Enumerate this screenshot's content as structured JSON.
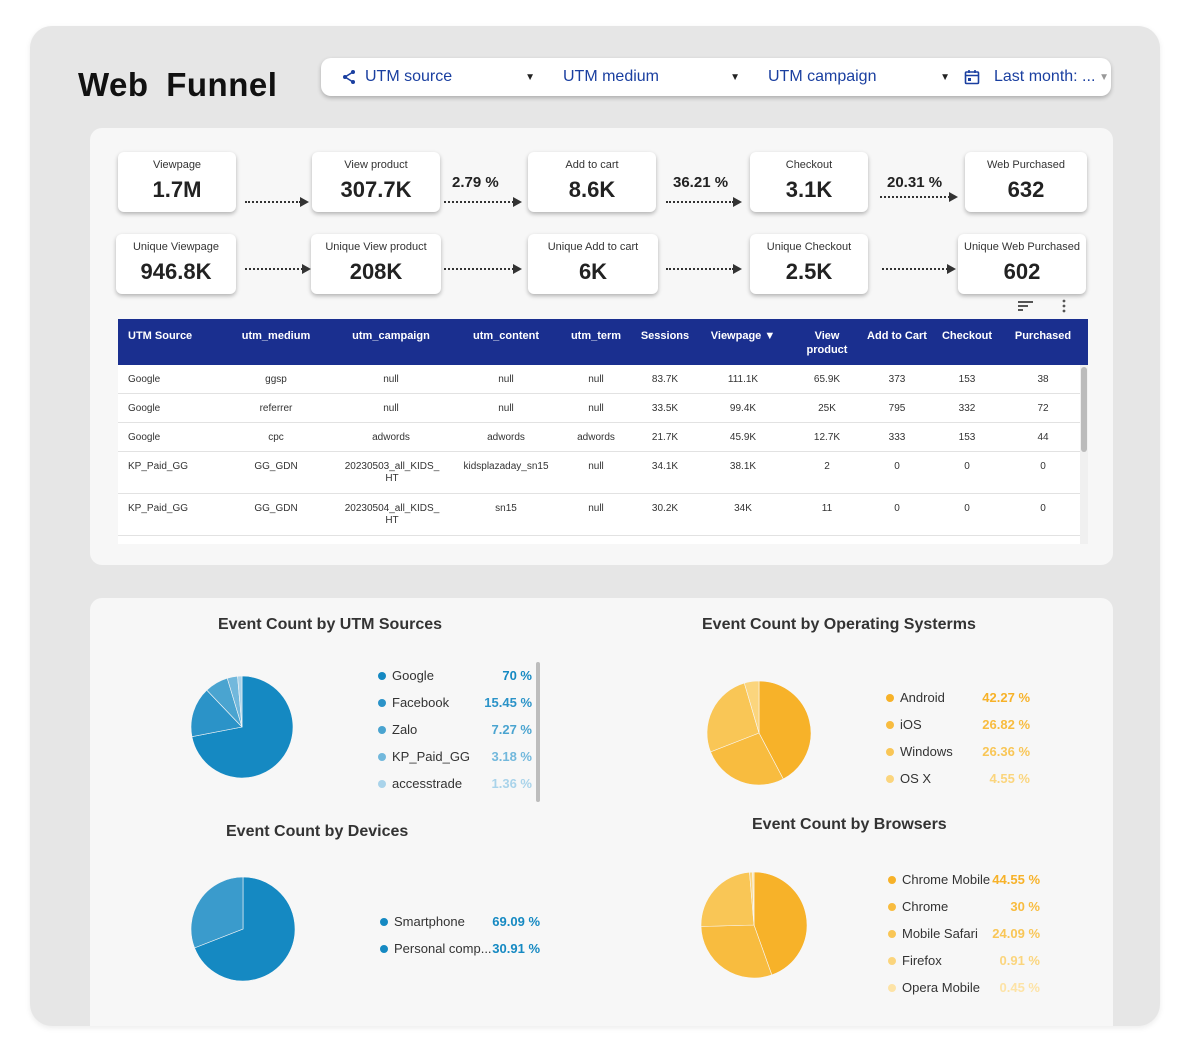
{
  "title": "Web Funnel",
  "filters": {
    "utm_source": "UTM source",
    "utm_medium": "UTM medium",
    "utm_campaign": "UTM campaign",
    "date": "Last month: ..."
  },
  "funnel": {
    "row1": [
      {
        "label": "Viewpage",
        "value": "1.7M"
      },
      {
        "label": "View product",
        "value": "307.7K"
      },
      {
        "label": "Add to cart",
        "value": "8.6K"
      },
      {
        "label": "Checkout",
        "value": "3.1K"
      },
      {
        "label": "Web Purchased",
        "value": "632"
      }
    ],
    "rates": [
      "2.79 %",
      "36.21 %",
      "20.31 %"
    ],
    "row2": [
      {
        "label": "Unique Viewpage",
        "value": "946.8K"
      },
      {
        "label": "Unique View product",
        "value": "208K"
      },
      {
        "label": "Unique Add to cart",
        "value": "6K"
      },
      {
        "label": "Unique Checkout",
        "value": "2.5K"
      },
      {
        "label": "Unique Web Purchased",
        "value": "602"
      }
    ]
  },
  "table": {
    "headers": [
      "UTM Source",
      "utm_medium",
      "utm_campaign",
      "utm_content",
      "utm_term",
      "Sessions",
      "Viewpage ▼",
      "View product",
      "Add to Cart",
      "Checkout",
      "Purchased"
    ],
    "rows": [
      [
        "Google",
        "ggsp",
        "null",
        "null",
        "null",
        "83.7K",
        "111.1K",
        "65.9K",
        "373",
        "153",
        "38"
      ],
      [
        "Google",
        "referrer",
        "null",
        "null",
        "null",
        "33.5K",
        "99.4K",
        "25K",
        "795",
        "332",
        "72"
      ],
      [
        "Google",
        "cpc",
        "adwords",
        "adwords",
        "adwords",
        "21.7K",
        "45.9K",
        "12.7K",
        "333",
        "153",
        "44"
      ],
      [
        "KP_Paid_GG",
        "GG_GDN",
        "20230503_all_KIDS_HT",
        "kidsplazaday_sn15",
        "null",
        "34.1K",
        "38.1K",
        "2",
        "0",
        "0",
        "0"
      ],
      [
        "KP_Paid_GG",
        "GG_GDN",
        "20230504_all_KIDS_HT",
        "sn15",
        "null",
        "30.2K",
        "34K",
        "11",
        "0",
        "0",
        "0"
      ]
    ]
  },
  "charts": {
    "utm_sources": {
      "title": "Event Count by UTM Sources",
      "legend": [
        {
          "name": "Google",
          "value": "70 %",
          "color": "#1589c2"
        },
        {
          "name": "Facebook",
          "value": "15.45 %",
          "color": "#2b93c8"
        },
        {
          "name": "Zalo",
          "value": "7.27 %",
          "color": "#4aa4d0"
        },
        {
          "name": "KP_Paid_GG",
          "value": "3.18 %",
          "color": "#72b8dc"
        },
        {
          "name": "accesstrade",
          "value": "1.36 %",
          "color": "#a9d3ea"
        }
      ]
    },
    "operating_systems": {
      "title": "Event Count by Operating Systerms",
      "legend": [
        {
          "name": "Android",
          "value": "42.27 %",
          "color": "#f7b229"
        },
        {
          "name": "iOS",
          "value": "26.82 %",
          "color": "#f8bc3f"
        },
        {
          "name": "Windows",
          "value": "26.36 %",
          "color": "#f9c656"
        },
        {
          "name": "OS X",
          "value": "4.55 %",
          "color": "#fbd57d"
        }
      ]
    },
    "devices": {
      "title": "Event Count by Devices",
      "legend": [
        {
          "name": "Smartphone",
          "value": "69.09 %",
          "color": "#1589c2"
        },
        {
          "name": "Personal comp...",
          "value": "30.91 %",
          "color": "#3a9bcc"
        }
      ]
    },
    "browsers": {
      "title": "Event Count by Browsers",
      "legend": [
        {
          "name": "Chrome Mobile",
          "value": "44.55 %",
          "color": "#f7b229"
        },
        {
          "name": "Chrome",
          "value": "30 %",
          "color": "#f8bc3f"
        },
        {
          "name": "Mobile Safari",
          "value": "24.09 %",
          "color": "#f9c656"
        },
        {
          "name": "Firefox",
          "value": "0.91 %",
          "color": "#fbd57d"
        },
        {
          "name": "Opera Mobile",
          "value": "0.45 %",
          "color": "#fde3a6"
        }
      ]
    }
  },
  "chart_data": [
    {
      "type": "pie",
      "title": "Event Count by UTM Sources",
      "categories": [
        "Google",
        "Facebook",
        "Zalo",
        "KP_Paid_GG",
        "accesstrade"
      ],
      "values": [
        70,
        15.45,
        7.27,
        3.18,
        1.36
      ]
    },
    {
      "type": "pie",
      "title": "Event Count by Operating Systerms",
      "categories": [
        "Android",
        "iOS",
        "Windows",
        "OS X"
      ],
      "values": [
        42.27,
        26.82,
        26.36,
        4.55
      ]
    },
    {
      "type": "pie",
      "title": "Event Count by Devices",
      "categories": [
        "Smartphone",
        "Personal comp..."
      ],
      "values": [
        69.09,
        30.91
      ]
    },
    {
      "type": "pie",
      "title": "Event Count by Browsers",
      "categories": [
        "Chrome Mobile",
        "Chrome",
        "Mobile Safari",
        "Firefox",
        "Opera Mobile"
      ],
      "values": [
        44.55,
        30,
        24.09,
        0.91,
        0.45
      ]
    }
  ]
}
